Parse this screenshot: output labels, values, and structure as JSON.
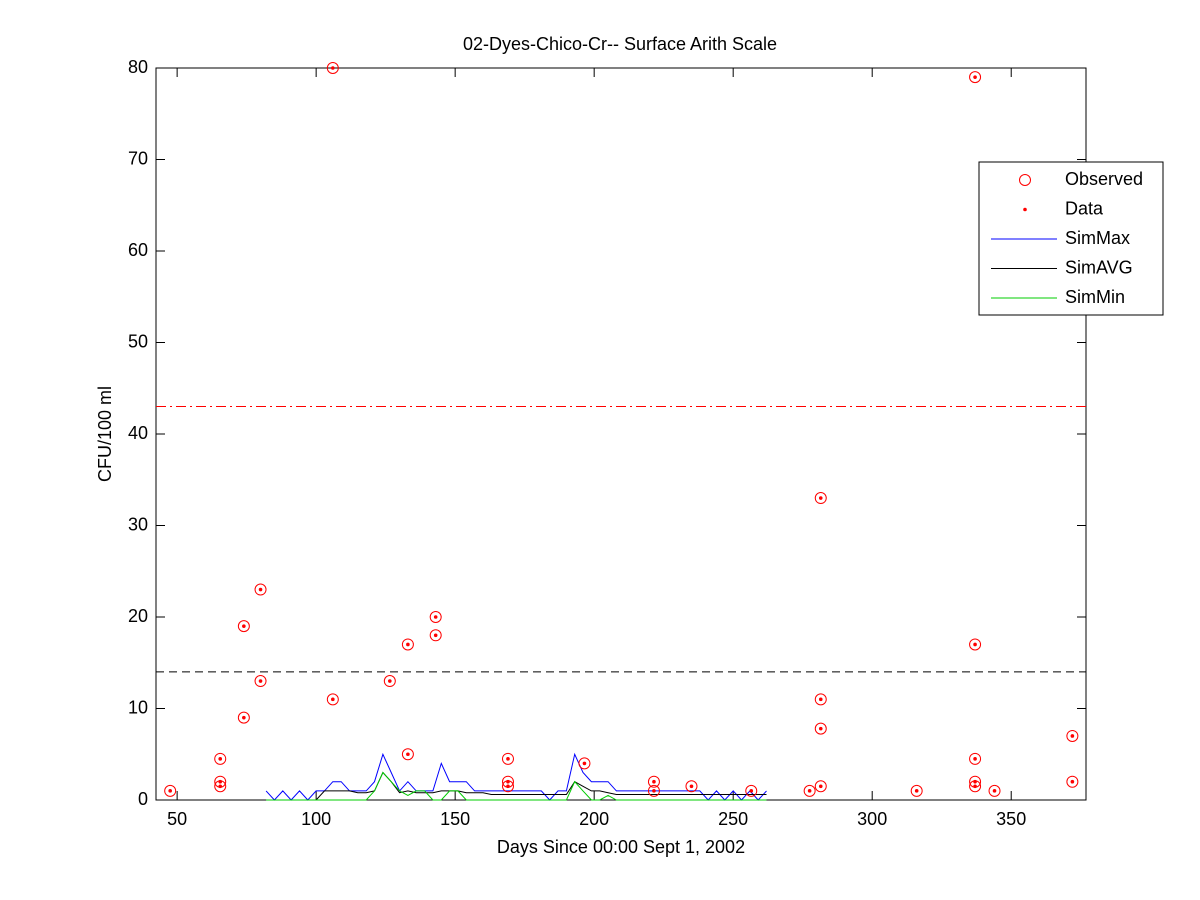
{
  "chart_data": {
    "type": "line",
    "title": "02-Dyes-Chico-Cr-- Surface Arith Scale",
    "xlabel": "Days Since 00:00 Sept 1, 2002",
    "ylabel": "CFU/100 ml",
    "xlim": [
      42.4,
      376.9
    ],
    "ylim": [
      0,
      80
    ],
    "xticks": [
      50,
      100,
      150,
      200,
      250,
      300,
      350
    ],
    "yticks": [
      0,
      10,
      20,
      30,
      40,
      50,
      60,
      70,
      80
    ],
    "legend": "upper right",
    "reference_lines": [
      {
        "value": 43,
        "color": "#ff0000",
        "style": "dashdot"
      },
      {
        "value": 14,
        "color": "#000000",
        "style": "dashed"
      }
    ],
    "series": [
      {
        "name": "Observed",
        "color": "#ff0000",
        "marker": "circle",
        "x": [
          47.5,
          65.5,
          65.5,
          65.5,
          74,
          74,
          80,
          80,
          106,
          106,
          126.5,
          133,
          133,
          143,
          143,
          169,
          169,
          169,
          196.5,
          221.5,
          221.5,
          235,
          256.5,
          277.5,
          281.5,
          281.5,
          281.5,
          281.5,
          316,
          337,
          337,
          337,
          337,
          337,
          344,
          372,
          372
        ],
        "values": [
          1,
          4.5,
          2,
          1.5,
          19,
          9,
          23,
          13,
          80,
          11,
          13,
          17,
          5,
          20,
          18,
          4.5,
          2,
          1.5,
          4,
          2,
          1,
          1.5,
          1,
          1,
          33,
          11,
          7.8,
          1.5,
          1,
          79,
          17,
          4.5,
          2,
          1.5,
          1,
          7,
          2
        ]
      },
      {
        "name": "Data",
        "color": "#ff0000",
        "marker": "dot",
        "x": [
          47.5,
          65.5,
          65.5,
          65.5,
          74,
          74,
          80,
          80,
          106,
          106,
          126.5,
          133,
          133,
          143,
          143,
          169,
          169,
          169,
          196.5,
          221.5,
          221.5,
          235,
          256.5,
          277.5,
          281.5,
          281.5,
          281.5,
          281.5,
          316,
          337,
          337,
          337,
          337,
          337,
          344,
          372,
          372
        ],
        "values": [
          1,
          4.5,
          2,
          1.5,
          19,
          9,
          23,
          13,
          80,
          11,
          13,
          17,
          5,
          20,
          18,
          4.5,
          2,
          1.5,
          4,
          2,
          1,
          1.5,
          1,
          1,
          33,
          11,
          7.8,
          1.5,
          1,
          79,
          17,
          4.5,
          2,
          1.5,
          1,
          7,
          2
        ]
      },
      {
        "name": "SimMax",
        "color": "#0000ff",
        "marker": "line",
        "x": [
          82,
          85,
          88,
          91,
          94,
          97,
          100,
          103,
          106,
          109,
          112,
          115,
          118,
          121,
          124,
          127,
          130,
          133,
          136,
          139,
          142,
          145,
          148,
          151,
          154,
          157,
          160,
          163,
          166,
          169,
          172,
          175,
          178,
          181,
          184,
          187,
          190,
          193,
          196,
          199,
          202,
          205,
          208,
          211,
          214,
          217,
          220,
          223,
          226,
          229,
          232,
          235,
          238,
          241,
          244,
          247,
          250,
          253,
          256,
          259,
          262
        ],
        "values": [
          1,
          0,
          1,
          0,
          1,
          0,
          1,
          1,
          2,
          2,
          1,
          1,
          1,
          2,
          5,
          3,
          1,
          2,
          1,
          1,
          1,
          4,
          2,
          2,
          2,
          1,
          1,
          1,
          1,
          1,
          1,
          1,
          1,
          1,
          0,
          1,
          1,
          5,
          3,
          2,
          2,
          2,
          1,
          1,
          1,
          1,
          1,
          1,
          1,
          1,
          1,
          1,
          1,
          0,
          1,
          0,
          1,
          0,
          1,
          0,
          1
        ]
      },
      {
        "name": "SimAVG",
        "color": "#000000",
        "marker": "line",
        "x": [
          82,
          85,
          88,
          91,
          94,
          97,
          100,
          103,
          106,
          109,
          112,
          115,
          118,
          121,
          124,
          127,
          130,
          133,
          136,
          139,
          142,
          145,
          148,
          151,
          154,
          157,
          160,
          163,
          166,
          169,
          172,
          175,
          178,
          181,
          184,
          187,
          190,
          193,
          196,
          199,
          202,
          205,
          208,
          211,
          214,
          217,
          220,
          223,
          226,
          229,
          232,
          235,
          238,
          241,
          244,
          247,
          250,
          253,
          256,
          259,
          262
        ],
        "values": [
          0,
          0,
          0,
          0,
          0,
          0,
          0,
          1,
          1,
          1,
          1,
          0.8,
          0.8,
          1,
          3,
          2,
          0.8,
          1,
          0.8,
          0.8,
          0.8,
          1,
          1,
          1,
          0.8,
          0.8,
          0.8,
          0.6,
          0.6,
          0.6,
          0.6,
          0.6,
          0.6,
          0.6,
          0.6,
          0.6,
          0.6,
          2,
          1.5,
          1,
          1,
          0.8,
          0.6,
          0.6,
          0.6,
          0.6,
          0.6,
          0.6,
          0.6,
          0.6,
          0.6,
          0.6,
          0.6,
          0.6,
          0.6,
          0.6,
          0.6,
          0.6,
          0.6,
          0.6,
          0.6
        ]
      },
      {
        "name": "SimMin",
        "color": "#00cc00",
        "marker": "line",
        "x": [
          82,
          85,
          88,
          91,
          94,
          97,
          100,
          103,
          106,
          109,
          112,
          115,
          118,
          121,
          124,
          127,
          130,
          133,
          136,
          139,
          142,
          145,
          148,
          151,
          154,
          157,
          160,
          163,
          166,
          169,
          172,
          175,
          178,
          181,
          184,
          187,
          190,
          193,
          196,
          199,
          202,
          205,
          208,
          211,
          214,
          217,
          220,
          223,
          226,
          229,
          232,
          235,
          238,
          241,
          244,
          247,
          250,
          253,
          256,
          259,
          262
        ],
        "values": [
          0,
          0,
          0,
          0,
          0,
          0,
          0,
          0,
          0,
          0,
          0,
          0,
          0,
          1,
          3,
          2,
          1,
          0.5,
          1,
          1,
          0,
          0,
          1,
          1,
          0,
          0,
          0,
          0,
          0,
          0,
          0,
          0,
          0,
          0,
          0,
          0,
          0,
          2,
          1,
          0,
          0,
          0.5,
          0,
          0,
          0,
          0,
          0,
          0,
          0,
          0,
          0,
          0,
          0,
          0,
          0,
          0,
          0,
          0,
          0,
          0,
          0
        ]
      }
    ]
  }
}
